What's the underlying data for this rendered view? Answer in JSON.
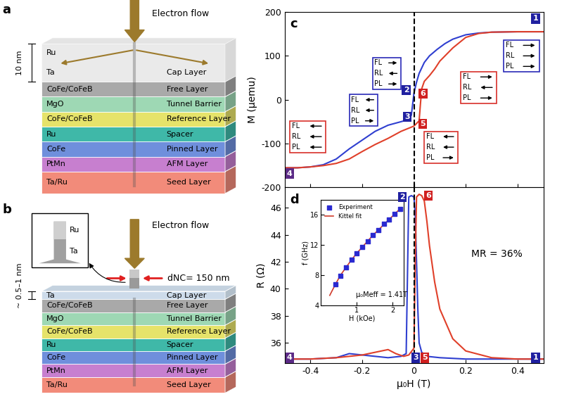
{
  "diagram_a": {
    "panel_label": "a",
    "flow_label": "Electron flow",
    "thickness_label": "10 nm",
    "cap": {
      "texts": [
        "Ru",
        "Ta"
      ],
      "role": "Cap Layer",
      "color": "#d9d9d9"
    },
    "layers": [
      {
        "name": "CoFe/CoFeB",
        "role": "Free Layer",
        "color": "#a9a9a9"
      },
      {
        "name": "MgO",
        "role": "Tunnel Barrier",
        "color": "#9ed8b4"
      },
      {
        "name": "CoFe/CoFeB",
        "role": "Reference Layer",
        "color": "#e6e36a"
      },
      {
        "name": "Ru",
        "role": "Spacer",
        "color": "#3fb8a8"
      },
      {
        "name": "CoFe",
        "role": "Pinned Layer",
        "color": "#6f8fdc"
      },
      {
        "name": "PtMn",
        "role": "AFM Layer",
        "color": "#c77fcf"
      },
      {
        "name": "Ta/Ru",
        "role": "Seed Layer",
        "color": "#f28b7a"
      }
    ]
  },
  "diagram_b": {
    "panel_label": "b",
    "flow_label": "Electron flow",
    "thickness_label": "~ 0.5–1 nm",
    "contact_label": "dNC= 150 nm",
    "inset_texts": [
      "Ru",
      "Ta"
    ],
    "cap": {
      "texts": [
        "Ta"
      ],
      "role": "Cap Layer",
      "color": "#c8d8e8"
    },
    "layers": [
      {
        "name": "CoFe/CoFeB",
        "role": "Free Layer",
        "color": "#a9a9a9"
      },
      {
        "name": "MgO",
        "role": "Tunnel Barrier",
        "color": "#9ed8b4"
      },
      {
        "name": "CoFe/CoFeB",
        "role": "Reference Layer",
        "color": "#e6e36a"
      },
      {
        "name": "Ru",
        "role": "Spacer",
        "color": "#3fb8a8"
      },
      {
        "name": "CoFe",
        "role": "Pinned Layer",
        "color": "#6f8fdc"
      },
      {
        "name": "PtMn",
        "role": "AFM Layer",
        "color": "#c77fcf"
      },
      {
        "name": "Ta/Ru",
        "role": "Seed Layer",
        "color": "#f28b7a"
      }
    ]
  },
  "chart_data": [
    {
      "panel_label": "c",
      "type": "line",
      "ylabel": "M (μemu)",
      "xlim": [
        -0.5,
        0.5
      ],
      "xticks": [
        -0.4,
        -0.2,
        0,
        0.2,
        0.4
      ],
      "ylim": [
        -200,
        200
      ],
      "yticks": [
        -200,
        -100,
        0,
        100,
        200
      ],
      "tick_labels": "y",
      "vline_x": 0,
      "series": [
        {
          "color": "#2f3fd0",
          "x": [
            0.5,
            0.4,
            0.3,
            0.25,
            0.2,
            0.15,
            0.12,
            0.09,
            0.06,
            0.04,
            0.02,
            0.01,
            0.0,
            -0.005,
            -0.01,
            -0.02,
            -0.05,
            -0.1,
            -0.15,
            -0.2,
            -0.25,
            -0.3,
            -0.35,
            -0.4,
            -0.45,
            -0.5
          ],
          "values": [
            155,
            155,
            154,
            152,
            148,
            138,
            128,
            115,
            100,
            85,
            60,
            40,
            15,
            -10,
            -35,
            -45,
            -50,
            -58,
            -72,
            -92,
            -112,
            -135,
            -148,
            -153,
            -155,
            -155
          ]
        },
        {
          "color": "#e0402a",
          "x": [
            -0.5,
            -0.45,
            -0.4,
            -0.35,
            -0.3,
            -0.25,
            -0.2,
            -0.15,
            -0.1,
            -0.05,
            0.0,
            0.02,
            0.025,
            0.03,
            0.04,
            0.06,
            0.08,
            0.1,
            0.15,
            0.2,
            0.25,
            0.3,
            0.4,
            0.5
          ],
          "values": [
            -155,
            -155,
            -153,
            -150,
            -145,
            -135,
            -118,
            -102,
            -88,
            -72,
            -60,
            -48,
            -10,
            25,
            42,
            55,
            70,
            88,
            118,
            142,
            151,
            154,
            155,
            155
          ]
        }
      ],
      "point_labels": [
        {
          "label": "1",
          "x": 0.47,
          "y": 185,
          "color": "#2020a0"
        },
        {
          "label": "2",
          "x": -0.03,
          "y": 22,
          "color": "#2020a0"
        },
        {
          "label": "3",
          "x": -0.025,
          "y": -39,
          "color": "#2020a0"
        },
        {
          "label": "4",
          "x": -0.48,
          "y": -168,
          "color": "#5b2a86"
        },
        {
          "label": "5",
          "x": 0.035,
          "y": -55,
          "color": "#d02020"
        },
        {
          "label": "6",
          "x": 0.035,
          "y": 14,
          "color": "#d02020"
        }
      ],
      "state_boxes": [
        {
          "color": "#2a2ab8",
          "rows": [
            {
              "layer": "FL",
              "direction": "right"
            },
            {
              "layer": "RL",
              "direction": "right"
            },
            {
              "layer": "PL",
              "direction": "right"
            }
          ]
        },
        {
          "color": "#d8302a",
          "rows": [
            {
              "layer": "FL",
              "direction": "right"
            },
            {
              "layer": "RL",
              "direction": "left"
            },
            {
              "layer": "PL",
              "direction": "right"
            }
          ]
        },
        {
          "color": "#2a2ab8",
          "rows": [
            {
              "layer": "FL",
              "direction": "right"
            },
            {
              "layer": "RL",
              "direction": "left"
            },
            {
              "layer": "PL",
              "direction": "right"
            }
          ]
        },
        {
          "color": "#2a2ab8",
          "rows": [
            {
              "layer": "FL",
              "direction": "left"
            },
            {
              "layer": "RL",
              "direction": "left"
            },
            {
              "layer": "PL",
              "direction": "right"
            }
          ]
        },
        {
          "color": "#d8302a",
          "rows": [
            {
              "layer": "FL",
              "direction": "left"
            },
            {
              "layer": "RL",
              "direction": "left"
            },
            {
              "layer": "PL",
              "direction": "right"
            }
          ]
        },
        {
          "color": "#d8302a",
          "rows": [
            {
              "layer": "FL",
              "direction": "left"
            },
            {
              "layer": "RL",
              "direction": "left"
            },
            {
              "layer": "PL",
              "direction": "left"
            }
          ]
        }
      ]
    },
    {
      "panel_label": "d",
      "type": "line",
      "xlabel": "μ₀H (T)",
      "ylabel": "R (Ω)",
      "xlim": [
        -0.5,
        0.5
      ],
      "xticks": [
        -0.4,
        -0.2,
        0,
        0.2,
        0.4
      ],
      "ylim": [
        34.5,
        47.5
      ],
      "yticks": [
        36,
        38,
        40,
        42,
        44,
        46
      ],
      "vline_x": 0,
      "annotation": "MR = 36%",
      "series": [
        {
          "color": "#2f3fd0",
          "x": [
            0.5,
            0.3,
            0.2,
            0.1,
            0.05,
            0.03,
            0.02,
            0.015,
            0.01,
            0.005,
            0.0,
            -0.01,
            -0.02,
            -0.025,
            -0.03,
            -0.05,
            -0.1,
            -0.15,
            -0.2,
            -0.25,
            -0.3,
            -0.4,
            -0.5
          ],
          "values": [
            34.8,
            34.8,
            34.8,
            34.9,
            35.0,
            35.3,
            36.0,
            38.5,
            42.0,
            45.5,
            46.8,
            46.9,
            46.8,
            41.0,
            35.2,
            35.0,
            34.9,
            35.0,
            35.1,
            35.2,
            34.9,
            34.8,
            34.8
          ]
        },
        {
          "color": "#e0402a",
          "x": [
            -0.5,
            -0.4,
            -0.3,
            -0.2,
            -0.15,
            -0.1,
            -0.07,
            -0.04,
            -0.02,
            0.0,
            0.005,
            0.01,
            0.02,
            0.03,
            0.04,
            0.05,
            0.06,
            0.08,
            0.1,
            0.15,
            0.2,
            0.3,
            0.4,
            0.5
          ],
          "values": [
            34.8,
            34.8,
            34.9,
            35.1,
            35.3,
            35.5,
            35.2,
            35.0,
            35.1,
            35.6,
            42.0,
            46.8,
            47.0,
            46.9,
            46.5,
            45.0,
            43.2,
            40.5,
            38.5,
            36.3,
            35.4,
            34.9,
            34.8,
            34.8
          ]
        }
      ],
      "point_labels": [
        {
          "label": "1",
          "x": 0.47,
          "y": 34.9,
          "color": "#2020a0"
        },
        {
          "label": "2",
          "x": -0.045,
          "y": 46.8,
          "color": "#2020a0"
        },
        {
          "label": "3",
          "x": 0.006,
          "y": 34.9,
          "color": "#2020a0"
        },
        {
          "label": "4",
          "x": -0.48,
          "y": 34.9,
          "color": "#5b2a86"
        },
        {
          "label": "5",
          "x": 0.042,
          "y": 34.9,
          "color": "#d02020"
        },
        {
          "label": "6",
          "x": 0.055,
          "y": 46.9,
          "color": "#d02020"
        }
      ]
    },
    {
      "type": "scatter",
      "xlabel": "H (kOe)",
      "ylabel": "f (GHz)",
      "xlim": [
        0,
        2.3
      ],
      "xticks": [
        1,
        2
      ],
      "ylim": [
        4,
        18
      ],
      "yticks": [
        4,
        8,
        12,
        16
      ],
      "legend": "upper left",
      "annotation": "μ₀Meff = 1.41T",
      "series": [
        {
          "name": "Experiment",
          "type": "scatter",
          "marker": "square",
          "color": "#2a2ad0",
          "x": [
            0.4,
            0.55,
            0.7,
            0.85,
            1.0,
            1.15,
            1.3,
            1.45,
            1.6,
            1.75,
            1.9,
            2.05,
            2.2
          ],
          "values": [
            6.8,
            7.9,
            9.0,
            10.0,
            10.9,
            11.7,
            12.5,
            13.3,
            14.0,
            14.8,
            15.4,
            16.1,
            16.8
          ]
        },
        {
          "name": "Kittel fit",
          "type": "line",
          "color": "#d03a2a",
          "x": [
            0.25,
            0.4,
            0.55,
            0.7,
            0.85,
            1.0,
            1.15,
            1.3,
            1.45,
            1.6,
            1.75,
            1.9,
            2.05,
            2.2
          ],
          "values": [
            5.3,
            6.7,
            8.0,
            9.0,
            10.0,
            10.9,
            11.7,
            12.5,
            13.3,
            14.0,
            14.7,
            15.4,
            16.1,
            16.8
          ]
        }
      ]
    }
  ]
}
